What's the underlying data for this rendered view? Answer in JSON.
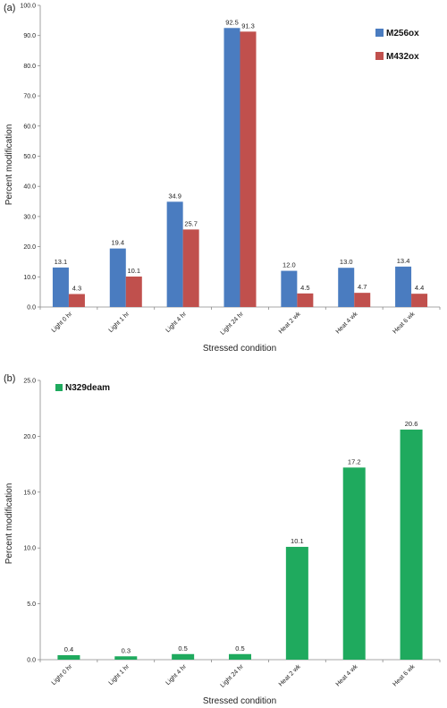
{
  "chart_data": [
    {
      "panel_label": "(a)",
      "type": "bar",
      "categories": [
        "Light 0 hr",
        "Light 1 hr",
        "Light 4 hr",
        "Light 24 hr",
        "Heat 2 wk",
        "Heat 4 wk",
        "Heat 6 wk"
      ],
      "series": [
        {
          "name": "M256ox",
          "color": "#4a7cc0",
          "values": [
            13.1,
            19.4,
            34.9,
            92.5,
            12.0,
            13.0,
            13.4
          ],
          "labels": [
            "13.1",
            "19.4",
            "34.9",
            "92.5",
            "12.0",
            "13.0",
            "13.4"
          ]
        },
        {
          "name": "M432ox",
          "color": "#c0504d",
          "values": [
            4.3,
            10.1,
            25.7,
            91.3,
            4.5,
            4.7,
            4.4
          ],
          "labels": [
            "4.3",
            "10.1",
            "25.7",
            "91.3",
            "4.5",
            "4.7",
            "4.4"
          ]
        }
      ],
      "xlabel": "Stressed condition",
      "ylabel": "Percent modification",
      "ylim": [
        0,
        100
      ],
      "yticks": [
        "0.0",
        "10.0",
        "20.0",
        "30.0",
        "40.0",
        "50.0",
        "60.0",
        "70.0",
        "80.0",
        "90.0",
        "100.0"
      ],
      "legend_position": "right"
    },
    {
      "panel_label": "(b)",
      "type": "bar",
      "categories": [
        "Light 0 hr",
        "Light 1 hr",
        "Light 4 hr",
        "Light 24 hr",
        "Heat 2 wk",
        "Heat 4 wk",
        "Heat 6 wk"
      ],
      "series": [
        {
          "name": "N329deam",
          "color": "#1faa5e",
          "values": [
            0.4,
            0.3,
            0.5,
            0.5,
            10.1,
            17.2,
            20.6
          ],
          "labels": [
            "0.4",
            "0.3",
            "0.5",
            "0.5",
            "10.1",
            "17.2",
            "20.6"
          ]
        }
      ],
      "xlabel": "Stressed condition",
      "ylabel": "Percent modification",
      "ylim": [
        0,
        25
      ],
      "yticks": [
        "0.0",
        "5.0",
        "10.0",
        "15.0",
        "20.0",
        "25.0"
      ],
      "legend_position": "top-left"
    }
  ]
}
